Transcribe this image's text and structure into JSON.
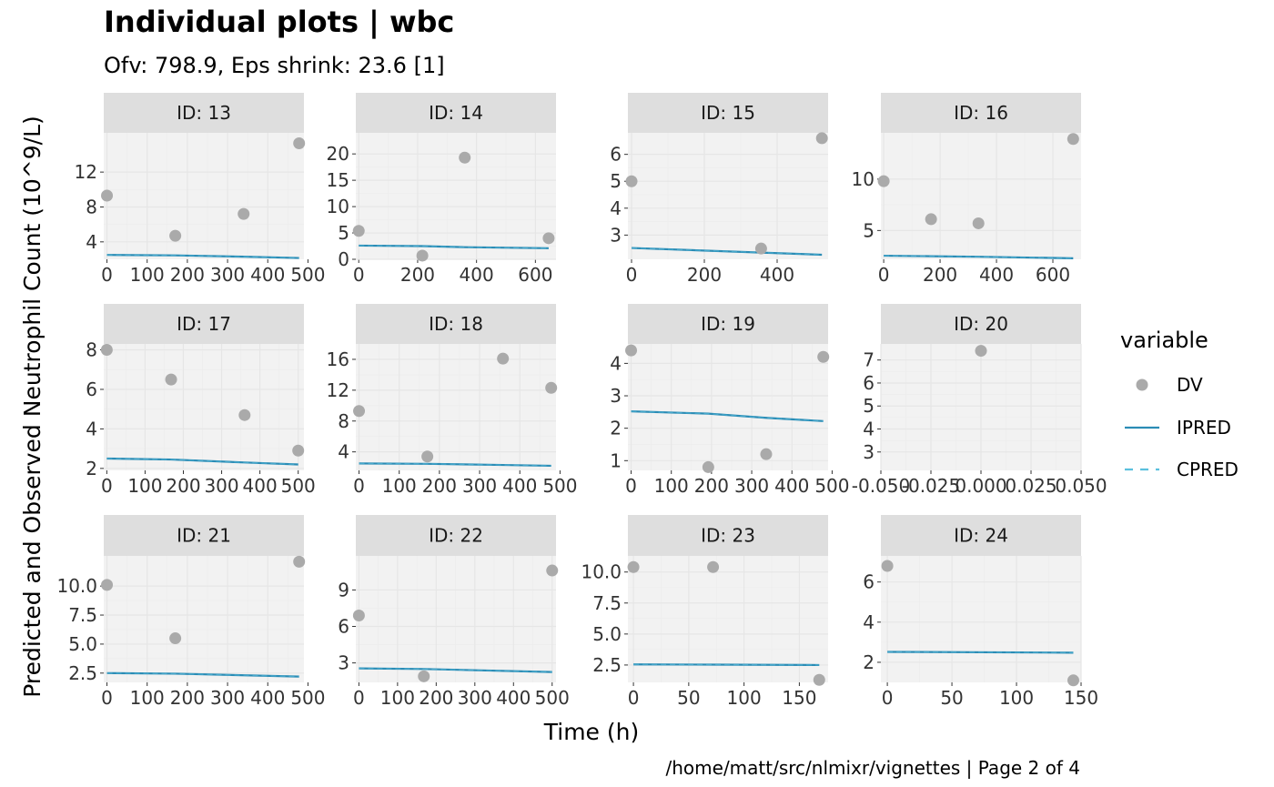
{
  "title": "Individual plots | wbc",
  "subtitle": "Ofv: 798.9, Eps shrink: 23.6 [1]",
  "xlabel": "Time (h)",
  "ylabel": "Predicted and Observed Neutrophil Count (10^9/L)",
  "caption": "/home/matt/src/nlmixr/vignettes | Page 2 of 4",
  "legend": {
    "title": "variable",
    "placement": "right",
    "items": [
      {
        "label": "DV",
        "kind": "point",
        "color": "#AAAAAA"
      },
      {
        "label": "IPRED",
        "kind": "line",
        "color": "#2B8CB5"
      },
      {
        "label": "CPRED",
        "kind": "dashed",
        "color": "#5BC0DE"
      }
    ]
  },
  "colors": {
    "dv": "#AAAAAA",
    "ipred": "#2B8CB5",
    "cpred": "#5BC0DE",
    "panel_bg": "#F2F2F2",
    "strip_bg": "#DEDEDE",
    "grid": "#E6E6E6"
  },
  "chart_data": {
    "type": "scatter",
    "grid": true,
    "panels": [
      {
        "label": "ID: 13",
        "xlim": [
          -8,
          490
        ],
        "ylim": [
          2,
          16.5
        ],
        "xticks": [
          0,
          100,
          200,
          300,
          400,
          500
        ],
        "yticks": [
          4,
          8,
          12
        ],
        "dv": [
          [
            0,
            9.3
          ],
          [
            170,
            4.7
          ],
          [
            340,
            7.2
          ],
          [
            478,
            15.3
          ]
        ],
        "ipred": [
          [
            0,
            2.5
          ],
          [
            170,
            2.45
          ],
          [
            340,
            2.3
          ],
          [
            478,
            2.15
          ]
        ]
      },
      {
        "label": "ID: 14",
        "xlim": [
          -10,
          670
        ],
        "ylim": [
          0,
          24
        ],
        "xticks": [
          0,
          200,
          400,
          600
        ],
        "yticks": [
          0,
          5,
          10,
          15,
          20
        ],
        "dv": [
          [
            0,
            5.4
          ],
          [
            216,
            0.7
          ],
          [
            360,
            19.3
          ],
          [
            645,
            4.0
          ]
        ],
        "ipred": [
          [
            0,
            2.6
          ],
          [
            216,
            2.5
          ],
          [
            360,
            2.3
          ],
          [
            645,
            2.1
          ]
        ]
      },
      {
        "label": "ID: 15",
        "xlim": [
          -10,
          540
        ],
        "ylim": [
          2.1,
          6.8
        ],
        "xticks": [
          0,
          200,
          400
        ],
        "yticks": [
          3,
          4,
          5,
          6
        ],
        "dv": [
          [
            0,
            5.0
          ],
          [
            356,
            2.5
          ],
          [
            523,
            6.6
          ]
        ],
        "ipred": [
          [
            0,
            2.52
          ],
          [
            356,
            2.35
          ],
          [
            523,
            2.27
          ]
        ]
      },
      {
        "label": "ID: 16",
        "xlim": [
          -10,
          700
        ],
        "ylim": [
          2.2,
          14.5
        ],
        "xticks": [
          0,
          200,
          400,
          600
        ],
        "yticks": [
          5,
          10
        ],
        "dv": [
          [
            0,
            9.8
          ],
          [
            168,
            6.1
          ],
          [
            336,
            5.7
          ],
          [
            672,
            13.9
          ]
        ],
        "ipred": [
          [
            0,
            2.55
          ],
          [
            168,
            2.5
          ],
          [
            336,
            2.45
          ],
          [
            672,
            2.3
          ]
        ]
      },
      {
        "label": "ID: 17",
        "xlim": [
          -8,
          515
        ],
        "ylim": [
          1.9,
          8.3
        ],
        "xticks": [
          0,
          100,
          200,
          300,
          400,
          500
        ],
        "yticks": [
          2,
          4,
          6,
          8
        ],
        "dv": [
          [
            0,
            8.0
          ],
          [
            168,
            6.5
          ],
          [
            360,
            4.7
          ],
          [
            500,
            2.9
          ]
        ],
        "ipred": [
          [
            0,
            2.5
          ],
          [
            168,
            2.45
          ],
          [
            360,
            2.3
          ],
          [
            500,
            2.2
          ]
        ]
      },
      {
        "label": "ID: 18",
        "xlim": [
          -8,
          490
        ],
        "ylim": [
          1.6,
          18.0
        ],
        "xticks": [
          0,
          100,
          200,
          300,
          400,
          500
        ],
        "yticks": [
          4,
          8,
          12,
          16
        ],
        "dv": [
          [
            0,
            9.3
          ],
          [
            170,
            3.4
          ],
          [
            358,
            16.1
          ],
          [
            478,
            12.3
          ]
        ],
        "ipred": [
          [
            0,
            2.5
          ],
          [
            170,
            2.45
          ],
          [
            358,
            2.3
          ],
          [
            478,
            2.2
          ]
        ]
      },
      {
        "label": "ID: 19",
        "xlim": [
          -8,
          490
        ],
        "ylim": [
          0.7,
          4.6
        ],
        "xticks": [
          0,
          100,
          200,
          300,
          400,
          500
        ],
        "yticks": [
          1,
          2,
          3,
          4
        ],
        "dv": [
          [
            0,
            4.4
          ],
          [
            192,
            0.8
          ],
          [
            336,
            1.2
          ],
          [
            478,
            4.2
          ]
        ],
        "ipred": [
          [
            0,
            2.52
          ],
          [
            192,
            2.45
          ],
          [
            336,
            2.32
          ],
          [
            478,
            2.22
          ]
        ]
      },
      {
        "label": "ID: 20",
        "xlim": [
          -0.05,
          0.05
        ],
        "ylim": [
          2.2,
          7.7
        ],
        "xticks": [
          -0.05,
          -0.025,
          0,
          0.025,
          0.05
        ],
        "xticklabels": [
          "-0.050",
          "-0.025",
          "0.000",
          "0.025",
          "0.050"
        ],
        "yticks": [
          3,
          4,
          5,
          6,
          7
        ],
        "dv": [
          [
            0,
            7.4
          ]
        ],
        "ipred": []
      },
      {
        "label": "ID: 21",
        "xlim": [
          -8,
          490
        ],
        "ylim": [
          1.7,
          12.6
        ],
        "xticks": [
          0,
          100,
          200,
          300,
          400,
          500
        ],
        "yticks": [
          2.5,
          5.0,
          7.5,
          10.0
        ],
        "yticklabels": [
          "2.5",
          "5.0",
          "7.5",
          "10.0"
        ],
        "dv": [
          [
            0,
            10.1
          ],
          [
            170,
            5.5
          ],
          [
            478,
            12.1
          ]
        ],
        "ipred": [
          [
            0,
            2.5
          ],
          [
            170,
            2.45
          ],
          [
            478,
            2.2
          ]
        ]
      },
      {
        "label": "ID: 22",
        "xlim": [
          -8,
          510
        ],
        "ylim": [
          1.4,
          11.8
        ],
        "xticks": [
          0,
          100,
          200,
          300,
          400,
          500
        ],
        "yticks": [
          3,
          6,
          9
        ],
        "dv": [
          [
            0,
            6.9
          ],
          [
            168,
            1.9
          ],
          [
            500,
            10.6
          ]
        ],
        "ipred": [
          [
            0,
            2.55
          ],
          [
            168,
            2.5
          ],
          [
            500,
            2.25
          ]
        ]
      },
      {
        "label": "ID: 23",
        "xlim": [
          -5,
          176
        ],
        "ylim": [
          1.1,
          11.3
        ],
        "xticks": [
          0,
          50,
          100,
          150
        ],
        "yticks": [
          2.5,
          5.0,
          7.5,
          10.0
        ],
        "yticklabels": [
          "2.5",
          "5.0",
          "7.5",
          "10.0"
        ],
        "dv": [
          [
            0,
            10.4
          ],
          [
            72,
            10.4
          ],
          [
            168,
            1.3
          ]
        ],
        "ipred": [
          [
            0,
            2.55
          ],
          [
            72,
            2.53
          ],
          [
            168,
            2.5
          ]
        ]
      },
      {
        "label": "ID: 24",
        "xlim": [
          -5,
          150
        ],
        "ylim": [
          1.0,
          7.3
        ],
        "xticks": [
          0,
          50,
          100,
          150
        ],
        "yticks": [
          2,
          4,
          6
        ],
        "dv": [
          [
            0,
            6.8
          ],
          [
            144,
            1.1
          ]
        ],
        "ipred": [
          [
            0,
            2.52
          ],
          [
            144,
            2.48
          ]
        ]
      }
    ]
  }
}
